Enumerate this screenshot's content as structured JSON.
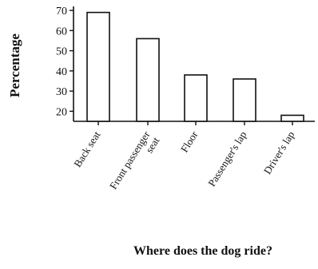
{
  "chart_data": {
    "type": "bar",
    "title": "",
    "xlabel": "Where does the dog ride?",
    "ylabel": "Percentage",
    "categories": [
      "Back seat",
      "Front passenger seat",
      "Floor",
      "Passenger's lap",
      "Driver's lap"
    ],
    "category_lines": [
      [
        "Back seat"
      ],
      [
        "Front passenger",
        "seat"
      ],
      [
        "Floor"
      ],
      [
        "Passenger's lap"
      ],
      [
        "Driver's lap"
      ]
    ],
    "values": [
      69,
      56,
      38,
      36,
      18
    ],
    "ylim": [
      15,
      72
    ],
    "yticks": [
      20,
      30,
      40,
      50,
      60,
      70
    ],
    "grid": false,
    "legend": "none",
    "colors": {
      "bar_fill": "#ffffff",
      "bar_stroke": "#111111",
      "axis": "#111111"
    }
  }
}
